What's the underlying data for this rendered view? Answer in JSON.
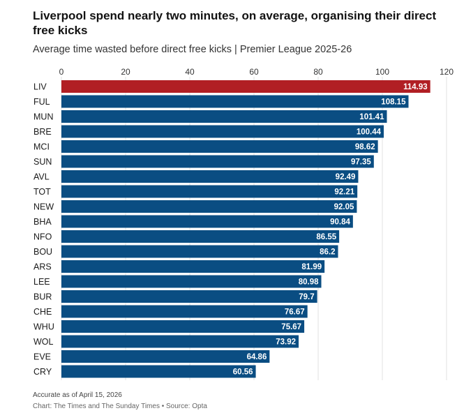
{
  "colors": {
    "highlight": "#b11f24",
    "bar": "#0a4d82",
    "grid": "#e1e1e1"
  },
  "chart_data": {
    "type": "bar",
    "orientation": "horizontal",
    "title": "Liverpool spend nearly two minutes, on average, organising their direct free kicks",
    "subtitle": "Average time wasted before direct free kicks | Premier League 2025-26",
    "xlim": [
      0,
      120
    ],
    "xticks": [
      0,
      20,
      40,
      60,
      80,
      100,
      120
    ],
    "grid": true,
    "highlight_category": "LIV",
    "categories": [
      "LIV",
      "FUL",
      "MUN",
      "BRE",
      "MCI",
      "SUN",
      "AVL",
      "TOT",
      "NEW",
      "BHA",
      "NFO",
      "BOU",
      "ARS",
      "LEE",
      "BUR",
      "CHE",
      "WHU",
      "WOL",
      "EVE",
      "CRY"
    ],
    "values": [
      114.93,
      108.15,
      101.41,
      100.44,
      98.62,
      97.35,
      92.49,
      92.21,
      92.05,
      90.84,
      86.55,
      86.2,
      81.99,
      80.98,
      79.7,
      76.67,
      75.67,
      73.92,
      64.86,
      60.56
    ],
    "value_labels": [
      "114.93",
      "108.15",
      "101.41",
      "100.44",
      "98.62",
      "97.35",
      "92.49",
      "92.21",
      "92.05",
      "90.84",
      "86.55",
      "86.2",
      "81.99",
      "80.98",
      "79.7",
      "76.67",
      "75.67",
      "73.92",
      "64.86",
      "60.56"
    ]
  },
  "footer": {
    "note": "Accurate as of April 15, 2026",
    "credit": "Chart: The Times and The Sunday Times • Source: Opta"
  }
}
